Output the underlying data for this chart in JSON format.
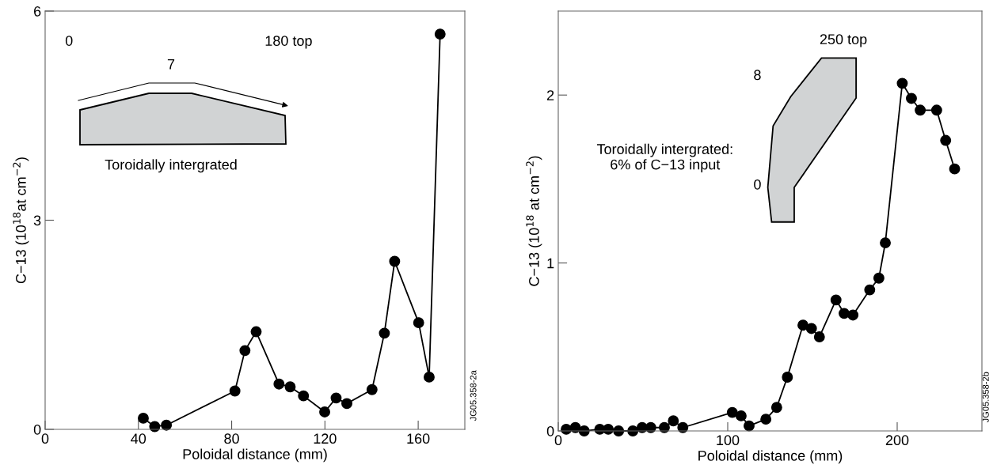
{
  "chart_data": [
    {
      "type": "line",
      "xlabel": "Poloidal distance (mm)",
      "ylabel": "C−13 (10$^{18}$at cm$^{−2}$)",
      "marker": "circle",
      "color": "#000000",
      "x": [
        42.1,
        47,
        52,
        81.4,
        85.7,
        90.5,
        100.3,
        105.1,
        110.8,
        119.9,
        124.8,
        129.4,
        140.2,
        145.5,
        149.9,
        160.2,
        164.7,
        169.4
      ],
      "values": [
        0.16,
        0.04,
        0.06,
        0.55,
        1.13,
        1.4,
        0.65,
        0.61,
        0.48,
        0.25,
        0.45,
        0.37,
        0.57,
        1.38,
        2.41,
        1.53,
        0.75,
        5.67
      ],
      "xlim": [
        0,
        180
      ],
      "ylim": [
        0,
        6
      ],
      "xticks": [
        0,
        40,
        80,
        120,
        160
      ],
      "yticks": [
        0,
        3,
        6
      ],
      "annotations": [
        "0",
        "180 top",
        "7",
        "Toroidally intergrated",
        "JG05.358-2a"
      ]
    },
    {
      "type": "line",
      "xlabel": "Poloidal distance (mm)",
      "ylabel": "C−13 (10$^{18}$ at cm$^{−2}$)",
      "marker": "circle",
      "color": "#000000",
      "x": [
        4.7,
        10.1,
        15.3,
        24.5,
        29.5,
        35.6,
        44,
        49.5,
        54.6,
        62.6,
        67.9,
        73.5,
        102.7,
        107.9,
        112.6,
        122.5,
        128.9,
        135.2,
        144.4,
        149.4,
        154.1,
        163.9,
        168.7,
        173.9,
        183.8,
        189.2,
        193,
        203,
        208.4,
        213.6,
        223.3,
        228.6,
        233.9
      ],
      "values": [
        0.01,
        0.02,
        0.0,
        0.01,
        0.01,
        0.0,
        0.0,
        0.02,
        0.02,
        0.02,
        0.06,
        0.02,
        0.11,
        0.09,
        0.03,
        0.07,
        0.14,
        0.32,
        0.63,
        0.61,
        0.56,
        0.78,
        0.7,
        0.69,
        0.84,
        0.91,
        1.12,
        2.07,
        1.98,
        1.91,
        1.91,
        1.73,
        1.56
      ],
      "xlim": [
        0,
        250
      ],
      "ylim": [
        0,
        2.5
      ],
      "xticks": [
        0,
        100,
        200
      ],
      "yticks": [
        0,
        1,
        2
      ],
      "annotations": [
        "250 top",
        "8",
        "0",
        "Toroidally intergrated:\n6% of C−13 input",
        "JG05.358-2b"
      ]
    }
  ]
}
